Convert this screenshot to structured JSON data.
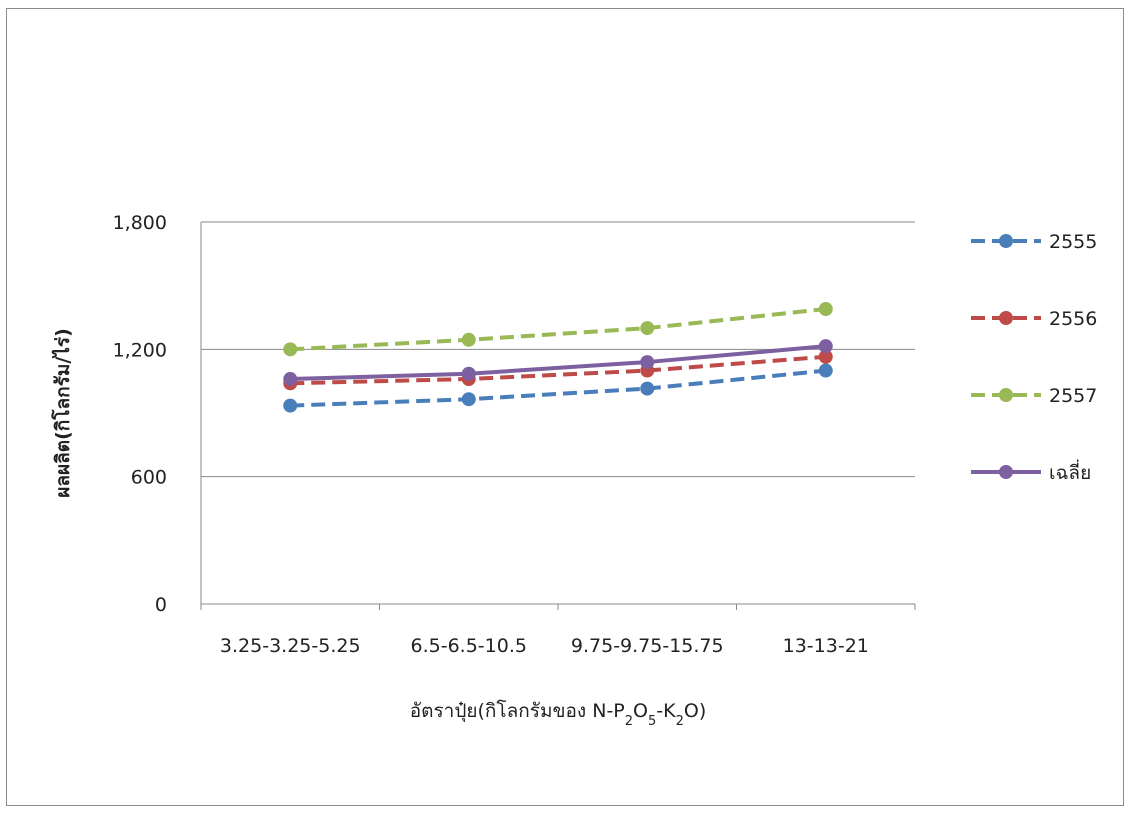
{
  "chart_data": {
    "type": "line",
    "title": "",
    "xlabel": "อัตราปุ๋ย(กิโลกรัมของ N-P",
    "xlabel_parts": {
      "prefix": "อัตราปุ๋ย(กิโลกรัมของ N-P",
      "sub1": "2",
      "mid1": "O",
      "sub2": "5",
      "mid2": "-K",
      "sub3": "2",
      "suffix": "O)"
    },
    "ylabel": "ผลผลิต(กิโลกรัม/ไร่)",
    "categories": [
      "3.25-3.25-5.25",
      "6.5-6.5-10.5",
      "9.75-9.75-15.75",
      "13-13-21"
    ],
    "ylim": [
      0,
      1800
    ],
    "yticks": [
      {
        "value": 0,
        "label": "0"
      },
      {
        "value": 600,
        "label": "600"
      },
      {
        "value": 1200,
        "label": "1,200"
      },
      {
        "value": 1800,
        "label": "1,800"
      }
    ],
    "grid": true,
    "legend_position": "right",
    "series": [
      {
        "name": "2555",
        "values": [
          935,
          965,
          1015,
          1100
        ],
        "color": "#4a7ebb",
        "dash": true
      },
      {
        "name": "2556",
        "values": [
          1040,
          1060,
          1100,
          1165
        ],
        "color": "#be4b48",
        "dash": true
      },
      {
        "name": "2557",
        "values": [
          1200,
          1245,
          1300,
          1390
        ],
        "color": "#98b954",
        "dash": true
      },
      {
        "name": "เฉลี่ย",
        "values": [
          1060,
          1085,
          1140,
          1215
        ],
        "color": "#7d60a0",
        "dash": false
      }
    ]
  }
}
